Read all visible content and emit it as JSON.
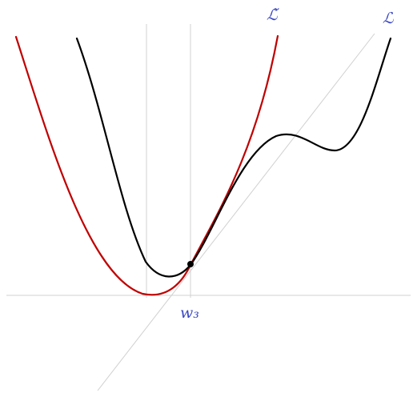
{
  "labels": {
    "surrogate_loss": "ℒ̃",
    "loss": "ℒ",
    "point": "w₃"
  },
  "colors": {
    "loss_curve": "#000000",
    "surrogate_curve": "#c00000",
    "label_text": "#3a47c4",
    "guide_lines": "#d0d0d0"
  }
}
